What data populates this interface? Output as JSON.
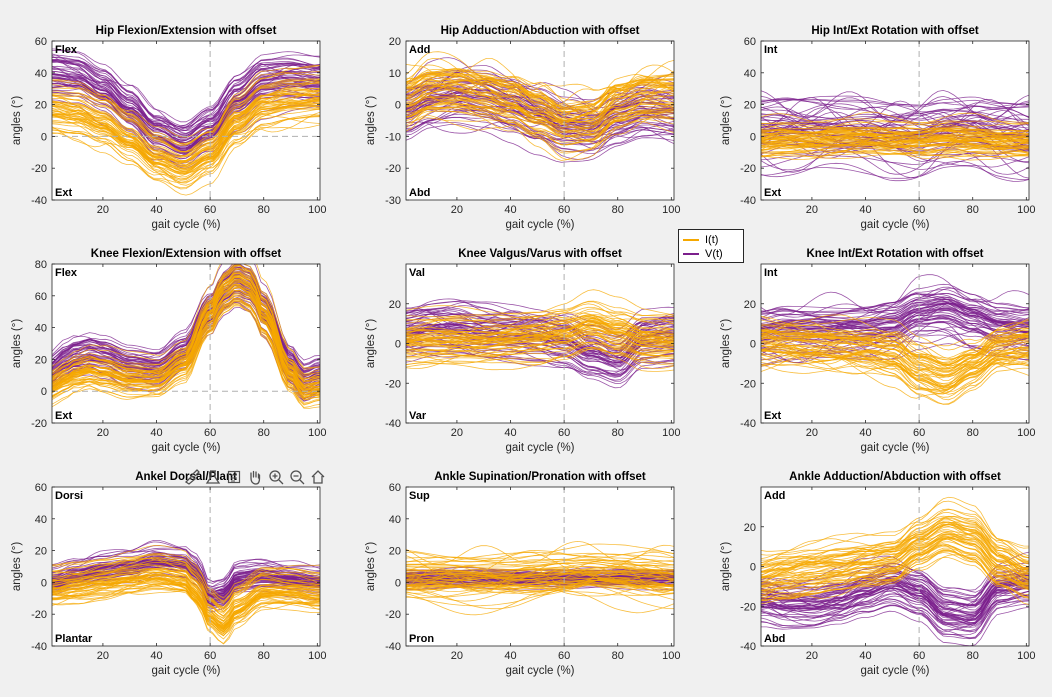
{
  "figure": {
    "background": "#f0f0f0",
    "axes_background": "#ffffff",
    "color_I": "#f5a800",
    "color_V": "#7b1f8c"
  },
  "legend": {
    "items": [
      {
        "label": "I(t)",
        "color": "#f5a800"
      },
      {
        "label": "V(t)",
        "color": "#7b1f8c"
      }
    ]
  },
  "toolbar": {
    "tools": [
      "brush-icon",
      "data-tip-icon",
      "data-cursor-icon",
      "pan-icon",
      "zoom-in-icon",
      "zoom-out-icon",
      "home-icon"
    ]
  },
  "chart_data": [
    {
      "type": "line",
      "title": "Hip Flexion/Extension with offset",
      "xlabel": "gait cycle (%)",
      "ylabel": "angles (°)",
      "xlim": [
        1,
        101
      ],
      "ylim": [
        -40,
        60
      ],
      "xticks": [
        20,
        40,
        60,
        80,
        100
      ],
      "yticks": [
        -40,
        -20,
        0,
        20,
        40,
        60
      ],
      "top_label": "Flex",
      "bottom_label": "Ext",
      "vline_x": 60,
      "hline_y": 0,
      "mean_I": {
        "x": [
          1,
          10,
          20,
          30,
          40,
          50,
          60,
          70,
          80,
          90,
          101
        ],
        "y": [
          18,
          16,
          10,
          0,
          -12,
          -18,
          -10,
          10,
          22,
          25,
          26
        ]
      },
      "mean_V": {
        "x": [
          1,
          10,
          20,
          30,
          40,
          50,
          60,
          70,
          80,
          90,
          101
        ],
        "y": [
          38,
          36,
          28,
          16,
          2,
          -5,
          4,
          22,
          34,
          36,
          34
        ]
      },
      "spread_I": 9,
      "spread_V": 10
    },
    {
      "type": "line",
      "title": "Hip Adduction/Abduction with offset",
      "xlabel": "gait cycle (%)",
      "ylabel": "angles (°)",
      "xlim": [
        1,
        101
      ],
      "ylim": [
        -30,
        20
      ],
      "xticks": [
        20,
        40,
        60,
        80,
        100
      ],
      "yticks": [
        -30,
        -20,
        -10,
        0,
        10,
        20
      ],
      "top_label": "Add",
      "bottom_label": "Abd",
      "vline_x": 60,
      "mean_I": {
        "x": [
          1,
          10,
          20,
          30,
          40,
          50,
          60,
          70,
          80,
          90,
          101
        ],
        "y": [
          4,
          7,
          7,
          6,
          4,
          0,
          -4,
          -3,
          3,
          5,
          5
        ]
      },
      "mean_V": {
        "x": [
          1,
          10,
          20,
          30,
          40,
          50,
          60,
          70,
          80,
          90,
          101
        ],
        "y": [
          0,
          3,
          4,
          3,
          1,
          -2,
          -5,
          -6,
          -3,
          -1,
          -1
        ]
      },
      "spread_I": 7,
      "spread_V": 7
    },
    {
      "type": "line",
      "title": "Hip Int/Ext Rotation with offset",
      "xlabel": "gait cycle (%)",
      "ylabel": "angles (°)",
      "xlim": [
        1,
        101
      ],
      "ylim": [
        -40,
        60
      ],
      "xticks": [
        20,
        40,
        60,
        80,
        100
      ],
      "yticks": [
        -40,
        -20,
        0,
        20,
        40,
        60
      ],
      "top_label": "Int",
      "bottom_label": "Ext",
      "vline_x": 60,
      "mean_I": {
        "x": [
          1,
          10,
          20,
          30,
          40,
          50,
          60,
          70,
          80,
          90,
          101
        ],
        "y": [
          -4,
          -3,
          -3,
          -2,
          -2,
          -3,
          -3,
          -2,
          -3,
          -4,
          -4
        ]
      },
      "mean_V": {
        "x": [
          1,
          10,
          20,
          30,
          40,
          50,
          60,
          70,
          80,
          90,
          101
        ],
        "y": [
          5,
          6,
          5,
          4,
          4,
          3,
          2,
          5,
          6,
          3,
          2
        ]
      },
      "spread_I": 8,
      "spread_V": 15
    },
    {
      "type": "line",
      "title": "Knee Flexion/Extension with offset",
      "xlabel": "gait cycle (%)",
      "ylabel": "angles (°)",
      "xlim": [
        1,
        101
      ],
      "ylim": [
        -20,
        80
      ],
      "xticks": [
        20,
        40,
        60,
        80,
        100
      ],
      "yticks": [
        -20,
        0,
        20,
        40,
        60,
        80
      ],
      "top_label": "Flex",
      "bottom_label": "Ext",
      "vline_x": 60,
      "hline_y": 0,
      "mean_I": {
        "x": [
          1,
          5,
          10,
          15,
          20,
          30,
          40,
          50,
          60,
          65,
          70,
          75,
          80,
          90,
          95,
          101
        ],
        "y": [
          4,
          8,
          12,
          14,
          12,
          8,
          8,
          18,
          48,
          62,
          68,
          64,
          48,
          12,
          2,
          4
        ]
      },
      "mean_V": {
        "x": [
          1,
          5,
          10,
          15,
          20,
          30,
          40,
          50,
          60,
          65,
          70,
          75,
          80,
          90,
          95,
          101
        ],
        "y": [
          12,
          18,
          22,
          24,
          22,
          16,
          14,
          24,
          50,
          64,
          70,
          66,
          50,
          16,
          6,
          10
        ]
      },
      "spread_I": 8,
      "spread_V": 8
    },
    {
      "type": "line",
      "title": "Knee Valgus/Varus with offset",
      "xlabel": "gait cycle (%)",
      "ylabel": "angles (°)",
      "xlim": [
        1,
        101
      ],
      "ylim": [
        -40,
        40
      ],
      "xticks": [
        20,
        40,
        60,
        80,
        100
      ],
      "yticks": [
        -40,
        -20,
        0,
        20
      ],
      "top_label": "Val",
      "bottom_label": "Var",
      "vline_x": 60,
      "mean_I": {
        "x": [
          1,
          10,
          20,
          30,
          40,
          50,
          60,
          70,
          80,
          90,
          101
        ],
        "y": [
          2,
          2,
          2,
          2,
          3,
          4,
          6,
          10,
          6,
          2,
          2
        ]
      },
      "mean_V": {
        "x": [
          1,
          10,
          20,
          30,
          40,
          50,
          60,
          70,
          80,
          90,
          101
        ],
        "y": [
          4,
          6,
          6,
          4,
          3,
          2,
          0,
          -6,
          -10,
          0,
          2
        ]
      },
      "spread_I": 8,
      "spread_V": 9
    },
    {
      "type": "line",
      "title": "Knee Int/Ext Rotation with offset",
      "xlabel": "gait cycle (%)",
      "ylabel": "angles (°)",
      "xlim": [
        1,
        101
      ],
      "ylim": [
        -40,
        40
      ],
      "xticks": [
        20,
        40,
        60,
        80,
        100
      ],
      "yticks": [
        -40,
        -20,
        0,
        20
      ],
      "top_label": "Int",
      "bottom_label": "Ext",
      "vline_x": 60,
      "mean_I": {
        "x": [
          1,
          10,
          20,
          30,
          40,
          50,
          60,
          70,
          80,
          90,
          101
        ],
        "y": [
          2,
          1,
          0,
          -1,
          -2,
          -4,
          -12,
          -16,
          -10,
          -2,
          0
        ]
      },
      "mean_V": {
        "x": [
          1,
          10,
          20,
          30,
          40,
          50,
          60,
          70,
          80,
          90,
          101
        ],
        "y": [
          4,
          6,
          6,
          6,
          6,
          8,
          14,
          16,
          12,
          8,
          6
        ]
      },
      "spread_I": 9,
      "spread_V": 9
    },
    {
      "type": "line",
      "title": "Ankel Dorsal/Plant",
      "xlabel": "gait cycle (%)",
      "ylabel": "angles (°)",
      "xlim": [
        1,
        101
      ],
      "ylim": [
        -40,
        60
      ],
      "xticks": [
        20,
        40,
        60,
        80,
        100
      ],
      "yticks": [
        -40,
        -20,
        0,
        20,
        40,
        60
      ],
      "top_label": "Dorsi",
      "bottom_label": "Plantar",
      "vline_x": 60,
      "mean_I": {
        "x": [
          1,
          10,
          20,
          30,
          40,
          50,
          55,
          60,
          65,
          70,
          80,
          90,
          101
        ],
        "y": [
          -2,
          0,
          2,
          4,
          6,
          4,
          -4,
          -18,
          -24,
          -14,
          -4,
          -4,
          -6
        ]
      },
      "mean_V": {
        "x": [
          1,
          10,
          20,
          30,
          40,
          50,
          55,
          60,
          65,
          70,
          80,
          90,
          101
        ],
        "y": [
          0,
          4,
          8,
          10,
          14,
          12,
          6,
          -10,
          -8,
          2,
          4,
          2,
          0
        ]
      },
      "spread_I": 8,
      "spread_V": 6
    },
    {
      "type": "line",
      "title": "Ankle Supination/Pronation with offset",
      "xlabel": "gait cycle (%)",
      "ylabel": "angles (°)",
      "xlim": [
        1,
        101
      ],
      "ylim": [
        -40,
        60
      ],
      "xticks": [
        20,
        40,
        60,
        80,
        100
      ],
      "yticks": [
        -40,
        -20,
        0,
        20,
        40,
        60
      ],
      "top_label": "Sup",
      "bottom_label": "Pron",
      "vline_x": 60,
      "mean_I": {
        "x": [
          1,
          10,
          20,
          30,
          40,
          50,
          60,
          70,
          80,
          90,
          101
        ],
        "y": [
          2,
          2,
          2,
          2,
          2,
          3,
          4,
          5,
          4,
          3,
          2
        ]
      },
      "mean_V": {
        "x": [
          1,
          10,
          20,
          30,
          40,
          50,
          60,
          70,
          80,
          90,
          101
        ],
        "y": [
          3,
          3,
          3,
          3,
          3,
          3,
          3,
          3,
          3,
          3,
          3
        ]
      },
      "spread_I": 10,
      "spread_V": 4
    },
    {
      "type": "line",
      "title": "Ankle Adduction/Abduction with offset",
      "xlabel": "gait cycle (%)",
      "ylabel": "angles (°)",
      "xlim": [
        1,
        101
      ],
      "ylim": [
        -40,
        40
      ],
      "xticks": [
        20,
        40,
        60,
        80,
        100
      ],
      "yticks": [
        -40,
        -20,
        0,
        20
      ],
      "top_label": "Add",
      "bottom_label": "Abd",
      "vline_x": 60,
      "mean_I": {
        "x": [
          1,
          10,
          20,
          30,
          40,
          50,
          60,
          70,
          80,
          90,
          101
        ],
        "y": [
          -6,
          -4,
          -2,
          0,
          2,
          4,
          12,
          18,
          14,
          2,
          -4
        ]
      },
      "mean_V": {
        "x": [
          1,
          10,
          20,
          30,
          40,
          50,
          60,
          70,
          80,
          90,
          101
        ],
        "y": [
          -16,
          -18,
          -18,
          -16,
          -12,
          -8,
          -12,
          -22,
          -24,
          -10,
          -8
        ]
      },
      "spread_I": 8,
      "spread_V": 8
    }
  ]
}
